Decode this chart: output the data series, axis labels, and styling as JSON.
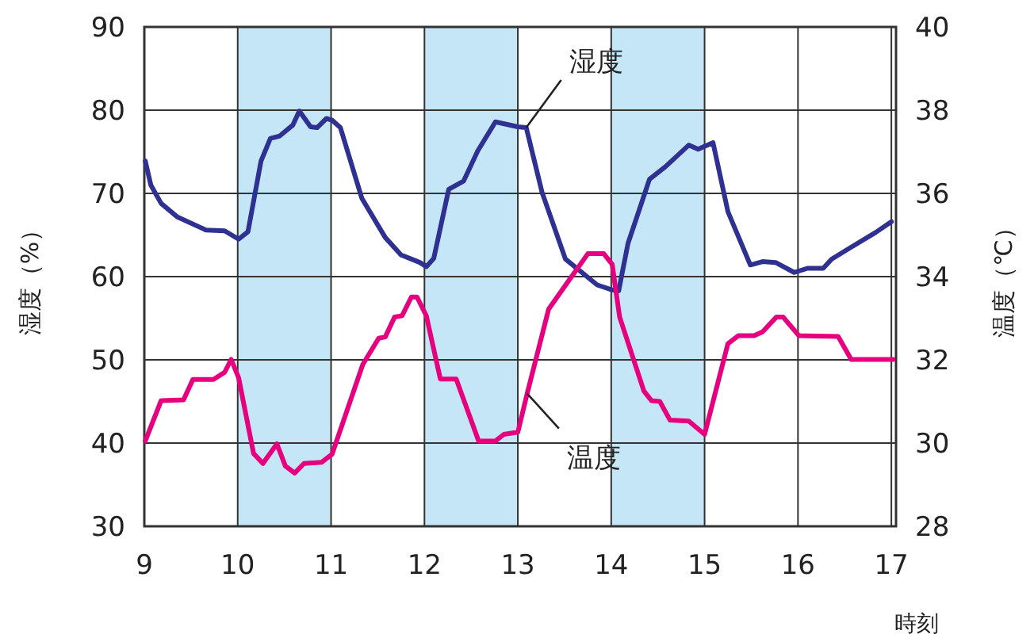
{
  "chart_data": {
    "type": "line",
    "xlabel": "時刻",
    "ylabel": "湿度（%）",
    "y2label": "温度（℃）",
    "xlim": [
      9,
      17.05
    ],
    "xticks": [
      9,
      10,
      11,
      12,
      13,
      14,
      15,
      16,
      17
    ],
    "ylim": [
      30,
      90
    ],
    "yticks": [
      30,
      40,
      50,
      60,
      70,
      80,
      90
    ],
    "y2lim": [
      28,
      40
    ],
    "y2ticks": [
      28,
      30,
      32,
      34,
      36,
      38,
      40
    ],
    "grid": true,
    "marker": "none",
    "line_style": "solid",
    "bands": [
      {
        "axis": "x",
        "from": 10,
        "to": 11,
        "color": "#c5e6f7"
      },
      {
        "axis": "x",
        "from": 12,
        "to": 13,
        "color": "#c5e6f7"
      },
      {
        "axis": "x",
        "from": 14,
        "to": 15,
        "color": "#c5e6f7"
      }
    ],
    "series": [
      {
        "name": "湿度",
        "color": "#2e3192",
        "x": [
          9.01,
          9.07,
          9.18,
          9.35,
          9.66,
          9.86,
          10.01,
          10.11,
          10.25,
          10.35,
          10.45,
          10.59,
          10.66,
          10.78,
          10.85,
          10.95,
          11.01,
          11.1,
          11.33,
          11.58,
          11.75,
          11.95,
          12.02,
          12.1,
          12.26,
          12.42,
          12.57,
          12.76,
          13.0,
          13.09,
          13.26,
          13.51,
          13.85,
          14.01,
          14.08,
          14.18,
          14.41,
          14.58,
          14.83,
          14.93,
          15.09,
          15.25,
          15.49,
          15.62,
          15.76,
          15.96,
          16.1,
          16.27,
          16.36,
          16.55,
          16.83,
          17.0
        ],
        "values": [
          73.9,
          71.0,
          68.8,
          67.2,
          65.6,
          65.5,
          64.5,
          65.4,
          73.9,
          76.6,
          76.9,
          78.2,
          79.9,
          78.0,
          77.9,
          79.0,
          78.8,
          77.9,
          69.4,
          64.7,
          62.6,
          61.7,
          61.2,
          62.2,
          70.5,
          71.5,
          75.1,
          78.6,
          78.0,
          77.9,
          70.1,
          62.1,
          59.0,
          58.4,
          58.3,
          64.0,
          71.7,
          73.2,
          75.8,
          75.3,
          76.1,
          67.8,
          61.4,
          61.8,
          61.7,
          60.5,
          61.0,
          61.0,
          62.1,
          63.4,
          65.3,
          66.6
        ]
      },
      {
        "name": "温度",
        "color": "#e6007e",
        "axis": "y2",
        "x": [
          9.01,
          9.18,
          9.42,
          9.52,
          9.74,
          9.86,
          9.93,
          10.01,
          10.17,
          10.27,
          10.42,
          10.51,
          10.61,
          10.71,
          10.9,
          11.01,
          11.34,
          11.51,
          11.58,
          11.68,
          11.76,
          11.86,
          11.92,
          12.02,
          12.17,
          12.34,
          12.58,
          12.76,
          12.85,
          13.0,
          13.1,
          13.33,
          13.55,
          13.75,
          13.92,
          14.01,
          14.09,
          14.35,
          14.43,
          14.52,
          14.63,
          14.83,
          15.0,
          15.25,
          15.36,
          15.53,
          15.62,
          15.77,
          15.84,
          16.01,
          16.43,
          16.57,
          17.02
        ],
        "values": [
          30.05,
          31.02,
          31.04,
          31.53,
          31.53,
          31.7,
          32.01,
          31.57,
          29.75,
          29.51,
          29.98,
          29.45,
          29.28,
          29.51,
          29.54,
          29.73,
          31.89,
          32.52,
          32.55,
          33.03,
          33.06,
          33.51,
          33.51,
          33.06,
          31.54,
          31.54,
          30.05,
          30.05,
          30.21,
          30.26,
          31.19,
          33.22,
          33.92,
          34.55,
          34.55,
          34.3,
          33.03,
          31.25,
          31.02,
          31.0,
          30.55,
          30.53,
          30.21,
          32.39,
          32.58,
          32.58,
          32.67,
          33.03,
          33.03,
          32.58,
          32.56,
          32.01,
          32.01
        ]
      }
    ]
  }
}
